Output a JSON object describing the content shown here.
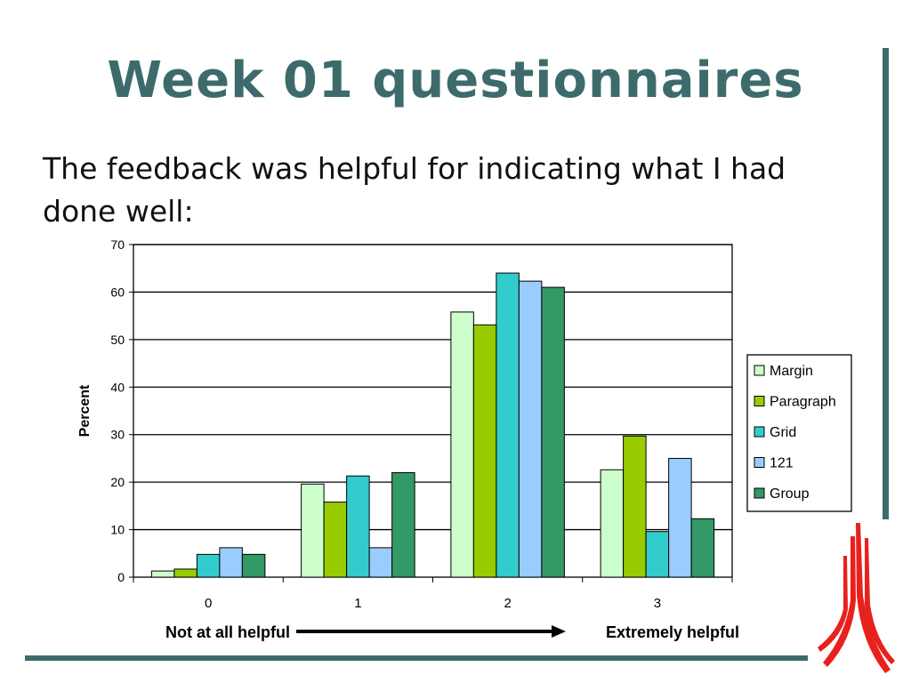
{
  "slide": {
    "title": "Week 01 questionnaires",
    "subtitle": "The feedback was helpful for indicating what I had done well:",
    "accent_color": "#3d6b6b",
    "logo_color": "#e8211d"
  },
  "chart_data": {
    "type": "bar",
    "categories": [
      "0",
      "1",
      "2",
      "3"
    ],
    "series": [
      {
        "name": "Margin",
        "color": "#ccffcc",
        "values": [
          1.3,
          19.6,
          55.8,
          22.6
        ]
      },
      {
        "name": "Paragraph",
        "color": "#99cc00",
        "values": [
          1.7,
          15.8,
          53.1,
          29.7
        ]
      },
      {
        "name": "Grid",
        "color": "#33cccc",
        "values": [
          4.8,
          21.3,
          64.0,
          9.6
        ]
      },
      {
        "name": "121",
        "color": "#99ccff",
        "values": [
          6.2,
          6.2,
          62.3,
          25.0
        ]
      },
      {
        "name": "Group",
        "color": "#339966",
        "values": [
          4.8,
          22.0,
          61.0,
          12.3
        ]
      }
    ],
    "ylabel": "Percent",
    "ylim": [
      0,
      70
    ],
    "yticks": [
      "0",
      "10",
      "20",
      "30",
      "40",
      "50",
      "60",
      "70"
    ],
    "grid": true,
    "legend": "right",
    "scale_left": "Not at all helpful",
    "scale_right": "Extremely helpful"
  }
}
